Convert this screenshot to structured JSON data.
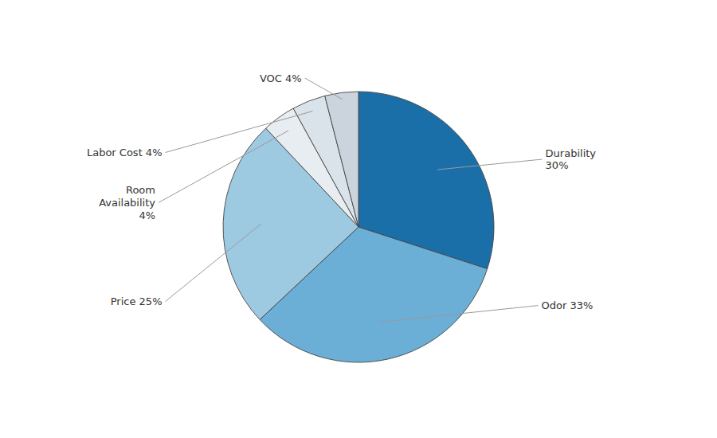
{
  "chart_data": {
    "type": "pie",
    "values": [
      30,
      33,
      25,
      4,
      4,
      4
    ],
    "colors": [
      "#1B6FA8",
      "#6BAED6",
      "#9ECAE1",
      "#E8EDF2",
      "#DAE2EA",
      "#CBD4DC"
    ],
    "annotations": [
      "Durability\n30%",
      "Odor 33%",
      "Price 25%",
      "Room\nAvailability\n4%",
      "Labor Cost 4%",
      "VOC 4%"
    ]
  }
}
